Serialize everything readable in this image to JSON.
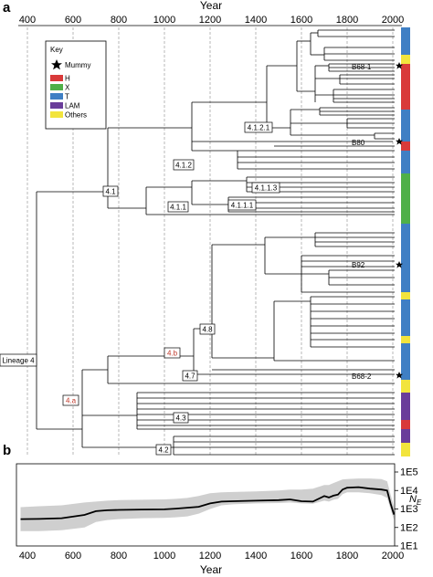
{
  "panels": {
    "a": "a",
    "b": "b"
  },
  "year_axis": {
    "title": "Year",
    "ticks": [
      "400",
      "600",
      "800",
      "1000",
      "1200",
      "1400",
      "1600",
      "1800",
      "2000"
    ]
  },
  "key": {
    "title": "Key",
    "items": [
      {
        "label": "Mummy",
        "symbol": "star",
        "color": "#000000"
      },
      {
        "label": "H",
        "symbol": "box",
        "color": "#d93a3a"
      },
      {
        "label": "X",
        "symbol": "box",
        "color": "#4fb048"
      },
      {
        "label": "T",
        "symbol": "box",
        "color": "#3f7fc4"
      },
      {
        "label": "LAM",
        "symbol": "box",
        "color": "#6a3d9a"
      },
      {
        "label": "Others",
        "symbol": "box",
        "color": "#f2e43d"
      }
    ]
  },
  "nodes": {
    "lineage4": "Lineage 4",
    "n4a": "4.a",
    "n4b": "4.b",
    "n41": "4.1",
    "n412": "4.1.2",
    "n4121": "4.1.2.1",
    "n411": "4.1.1",
    "n4111": "4.1.1.1",
    "n4113": "4.1.1.3",
    "n48": "4.8",
    "n47": "4.7",
    "n43": "4.3",
    "n42": "4.2"
  },
  "samples": {
    "b68_1": "B68-1",
    "b80": "B80",
    "b92": "B92",
    "b68_2": "B68-2"
  },
  "ne_axis": {
    "label": "N",
    "label_sub": "E",
    "ticks": [
      "1E5",
      "1E4",
      "1E3",
      "1E2",
      "1E1"
    ]
  },
  "chart_data": {
    "type": "area",
    "xlabel": "Year",
    "ylabel": "Ne",
    "xlim": [
      360,
      2010
    ],
    "log_y": true,
    "ylim_log10": [
      1,
      5
    ],
    "x": [
      370,
      450,
      550,
      650,
      700,
      750,
      800,
      900,
      1000,
      1050,
      1100,
      1150,
      1200,
      1250,
      1300,
      1400,
      1500,
      1550,
      1600,
      1650,
      1700,
      1720,
      1740,
      1760,
      1780,
      1800,
      1850,
      1900,
      1950,
      1975,
      1990,
      2005
    ],
    "median_log10": [
      2.45,
      2.46,
      2.5,
      2.68,
      2.88,
      2.93,
      2.95,
      2.97,
      2.98,
      3.02,
      3.07,
      3.12,
      3.3,
      3.4,
      3.42,
      3.45,
      3.48,
      3.52,
      3.42,
      3.4,
      3.7,
      3.62,
      3.72,
      3.78,
      4.05,
      4.15,
      4.18,
      4.1,
      4.05,
      4.0,
      3.3,
      2.7
    ],
    "lower_log10": [
      1.8,
      1.8,
      1.85,
      2.0,
      2.3,
      2.4,
      2.45,
      2.5,
      2.52,
      2.55,
      2.6,
      2.75,
      3.0,
      3.2,
      3.25,
      3.3,
      3.32,
      3.35,
      3.3,
      3.28,
      3.45,
      3.4,
      3.5,
      3.55,
      3.8,
      3.9,
      3.9,
      3.85,
      3.75,
      3.6,
      3.0,
      2.4
    ],
    "upper_log10": [
      3.1,
      3.15,
      3.2,
      3.35,
      3.4,
      3.45,
      3.48,
      3.5,
      3.52,
      3.55,
      3.6,
      3.7,
      3.85,
      3.9,
      3.92,
      3.95,
      4.0,
      4.05,
      4.05,
      4.1,
      4.3,
      4.3,
      4.4,
      4.5,
      4.6,
      4.62,
      4.65,
      4.65,
      4.62,
      4.5,
      3.8,
      3.1
    ],
    "fill_color": "#cfcfcf",
    "line_color": "#000000"
  }
}
